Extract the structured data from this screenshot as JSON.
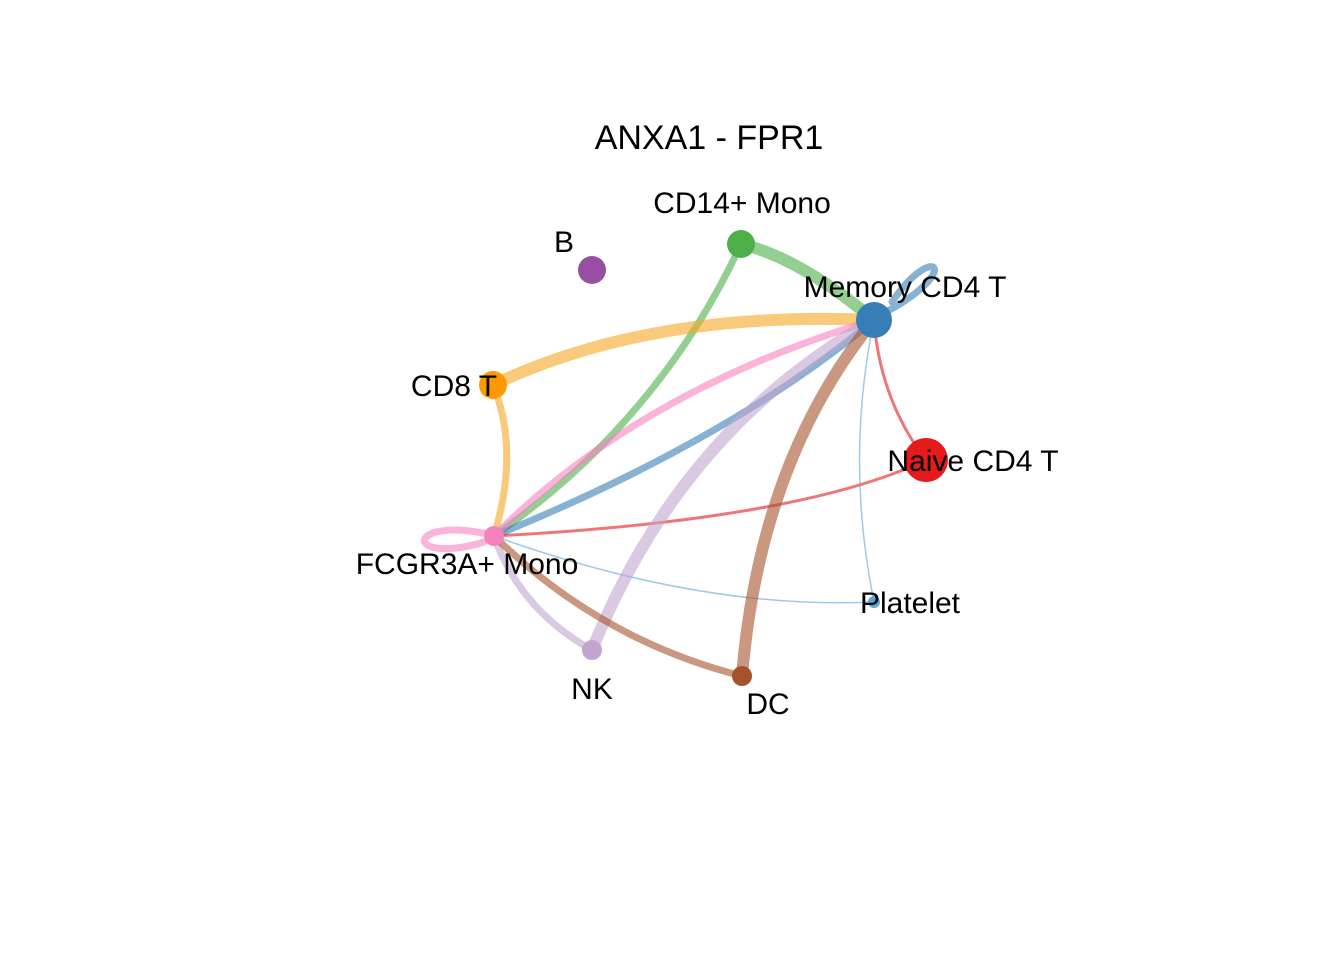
{
  "title": "ANXA1 - FPR1",
  "nodes": [
    {
      "id": "B",
      "label": "B",
      "color": "#984EA3",
      "size": "medium"
    },
    {
      "id": "CD14",
      "label": "CD14+ Mono",
      "color": "#4DAF4A",
      "size": "medium"
    },
    {
      "id": "MemCD4",
      "label": "Memory CD4 T",
      "color": "#377EB8",
      "size": "large"
    },
    {
      "id": "CD8",
      "label": "CD8 T",
      "color": "#FF9900",
      "size": "medium"
    },
    {
      "id": "NaiveCD4",
      "label": "Naive CD4 T",
      "color": "#E41A1C",
      "size": "xlarge"
    },
    {
      "id": "FCGR3A",
      "label": "FCGR3A+ Mono",
      "color": "#F781BF",
      "size": "small"
    },
    {
      "id": "Platelet",
      "label": "Platelet",
      "color": "#5AA7DA",
      "size": "tiny"
    },
    {
      "id": "NK",
      "label": "NK",
      "color": "#C2A5CF",
      "size": "small"
    },
    {
      "id": "DC",
      "label": "DC",
      "color": "#A6532B",
      "size": "small"
    }
  ],
  "edges": [
    {
      "from": "CD14",
      "to": "MemCD4",
      "color": "#4DAF4A",
      "weight": "strong"
    },
    {
      "from": "CD14",
      "to": "FCGR3A",
      "color": "#4DAF4A",
      "weight": "medium"
    },
    {
      "from": "MemCD4",
      "to": "MemCD4",
      "color": "#377EB8",
      "weight": "medium"
    },
    {
      "from": "MemCD4",
      "to": "FCGR3A",
      "color": "#377EB8",
      "weight": "medium"
    },
    {
      "from": "CD8",
      "to": "MemCD4",
      "color": "#F5A623",
      "weight": "strong"
    },
    {
      "from": "CD8",
      "to": "FCGR3A",
      "color": "#F5A623",
      "weight": "medium"
    },
    {
      "from": "NaiveCD4",
      "to": "MemCD4",
      "color": "#E41A1C",
      "weight": "weak"
    },
    {
      "from": "NaiveCD4",
      "to": "FCGR3A",
      "color": "#E41A1C",
      "weight": "weak"
    },
    {
      "from": "FCGR3A",
      "to": "MemCD4",
      "color": "#F781BF",
      "weight": "medium"
    },
    {
      "from": "FCGR3A",
      "to": "FCGR3A",
      "color": "#F781BF",
      "weight": "medium"
    },
    {
      "from": "Platelet",
      "to": "MemCD4",
      "color": "#5AA7DA",
      "weight": "thin"
    },
    {
      "from": "Platelet",
      "to": "FCGR3A",
      "color": "#5AA7DA",
      "weight": "thin"
    },
    {
      "from": "NK",
      "to": "MemCD4",
      "color": "#C2A5CF",
      "weight": "strong"
    },
    {
      "from": "NK",
      "to": "FCGR3A",
      "color": "#C2A5CF",
      "weight": "medium"
    },
    {
      "from": "DC",
      "to": "MemCD4",
      "color": "#A6532B",
      "weight": "strong"
    },
    {
      "from": "DC",
      "to": "FCGR3A",
      "color": "#A6532B",
      "weight": "medium"
    }
  ]
}
